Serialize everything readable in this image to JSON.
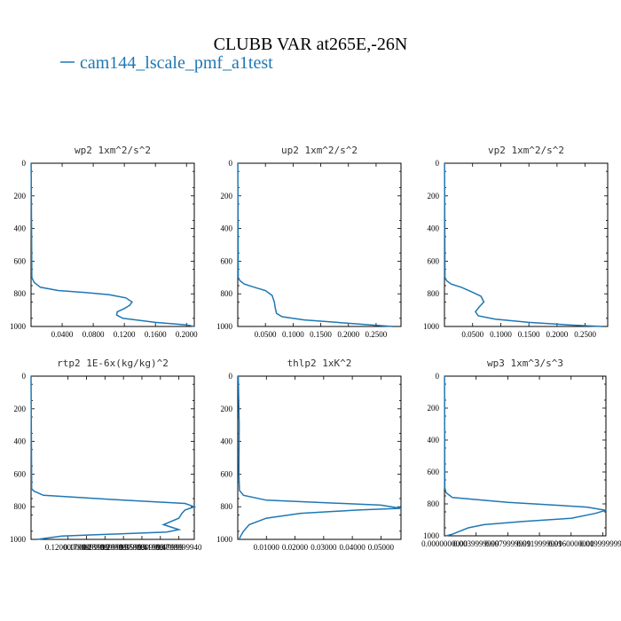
{
  "figure": {
    "title": "CLUBB VAR at265E,-26N",
    "legend_label": "cam144_lscale_pmf_a1test",
    "series_color": "#1f77b4"
  },
  "chart_data": [
    {
      "type": "line",
      "title": "wp2  1xm^2/s^2",
      "xlim": [
        0,
        0.21
      ],
      "ylim": [
        1000,
        0
      ],
      "xticks": [
        "0.0400",
        "0.0800",
        "0.1200",
        "0.1600",
        "0.2000"
      ],
      "xtick_values": [
        0.04,
        0.08,
        0.12,
        0.16,
        0.2
      ],
      "yticks": [
        "0",
        "200",
        "400",
        "600",
        "800",
        "1000"
      ],
      "ytick_values": [
        0,
        200,
        400,
        600,
        800,
        1000
      ],
      "x": [
        0.0001,
        0.001,
        0.004,
        0.012,
        0.035,
        0.07,
        0.1,
        0.122,
        0.13,
        0.127,
        0.12,
        0.111,
        0.11,
        0.118,
        0.16,
        0.2,
        0.21
      ],
      "y": [
        0,
        700,
        730,
        760,
        780,
        792,
        805,
        825,
        850,
        870,
        890,
        910,
        930,
        950,
        975,
        990,
        1000
      ]
    },
    {
      "type": "line",
      "title": "up2  1xm^2/s^2",
      "xlim": [
        0,
        0.295
      ],
      "ylim": [
        1000,
        0
      ],
      "xticks": [
        "0.0500",
        "0.1000",
        "0.1500",
        "0.2000",
        "0.2500"
      ],
      "xtick_values": [
        0.05,
        0.1,
        0.15,
        0.2,
        0.25
      ],
      "yticks": [
        "0",
        "200",
        "400",
        "600",
        "800",
        "1000"
      ],
      "ytick_values": [
        0,
        200,
        400,
        600,
        800,
        1000
      ],
      "x": [
        0.0001,
        0.001,
        0.004,
        0.012,
        0.03,
        0.05,
        0.062,
        0.066,
        0.068,
        0.07,
        0.08,
        0.12,
        0.18,
        0.24,
        0.28
      ],
      "y": [
        0,
        700,
        720,
        740,
        760,
        780,
        810,
        850,
        890,
        920,
        940,
        960,
        975,
        990,
        1000
      ]
    },
    {
      "type": "line",
      "title": "vp2  1xm^2/s^2",
      "xlim": [
        0,
        0.29
      ],
      "ylim": [
        1000,
        0
      ],
      "xticks": [
        "0.0500",
        "0.1000",
        "0.1500",
        "0.2000",
        "0.2500"
      ],
      "xtick_values": [
        0.05,
        0.1,
        0.15,
        0.2,
        0.25
      ],
      "yticks": [
        "0",
        "200",
        "400",
        "600",
        "800",
        "1000"
      ],
      "ytick_values": [
        0,
        200,
        400,
        600,
        800,
        1000
      ],
      "x": [
        0.0001,
        0.001,
        0.004,
        0.012,
        0.03,
        0.05,
        0.065,
        0.07,
        0.062,
        0.055,
        0.06,
        0.09,
        0.15,
        0.22,
        0.28
      ],
      "y": [
        0,
        700,
        720,
        740,
        760,
        790,
        815,
        850,
        880,
        910,
        935,
        955,
        975,
        990,
        1000
      ]
    },
    {
      "type": "line",
      "title": "rtp2  1E-6x(kg/kg)^2",
      "xlim": [
        0,
        0.53
      ],
      "ylim": [
        1000,
        0
      ],
      "xticks": [
        "0.1200000000",
        "0.1799999999",
        "0.2399999999",
        "0.2999999999",
        "0.3599999999",
        "0.4199999999",
        "0.4799999940"
      ],
      "xtick_values": [
        0.12,
        0.18,
        0.24,
        0.3,
        0.36,
        0.42,
        0.48
      ],
      "yticks": [
        "0",
        "200",
        "400",
        "600",
        "800",
        "1000"
      ],
      "ytick_values": [
        0,
        200,
        400,
        600,
        800,
        1000
      ],
      "x": [
        0.0001,
        0.002,
        0.01,
        0.04,
        0.3,
        0.5,
        0.53,
        0.5,
        0.49,
        0.48,
        0.43,
        0.48,
        0.44,
        0.3,
        0.1,
        0.02
      ],
      "y": [
        0,
        690,
        705,
        730,
        760,
        780,
        800,
        820,
        840,
        870,
        910,
        940,
        955,
        965,
        980,
        1000
      ]
    },
    {
      "type": "line",
      "title": "thlp2  1xK^2",
      "xlim": [
        0,
        0.057
      ],
      "ylim": [
        1000,
        0
      ],
      "xticks": [
        "0.01000",
        "0.02000",
        "0.03000",
        "0.04000",
        "0.05000"
      ],
      "xtick_values": [
        0.01,
        0.02,
        0.03,
        0.04,
        0.05
      ],
      "yticks": [
        "0",
        "200",
        "400",
        "600",
        "800",
        "1000"
      ],
      "ytick_values": [
        0,
        200,
        400,
        600,
        800,
        1000
      ],
      "x": [
        0.0002,
        0.0005,
        0.0004,
        0.0006,
        0.002,
        0.01,
        0.05,
        0.057,
        0.042,
        0.022,
        0.01,
        0.004,
        0.002,
        0.001,
        0.0005
      ],
      "y": [
        0,
        300,
        600,
        700,
        730,
        760,
        790,
        810,
        820,
        840,
        870,
        910,
        950,
        980,
        1000
      ]
    },
    {
      "type": "line",
      "title": "wp3  1xm^3/s^3",
      "xlim": [
        0,
        0.0204
      ],
      "ylim": [
        1000,
        0
      ],
      "xticks": [
        "0.0000000000",
        "0.0039999999",
        "0.0079999999",
        "0.0119999999",
        "0.0160000000",
        "0.0199999999"
      ],
      "xtick_values": [
        0,
        0.004,
        0.008,
        0.012,
        0.016,
        0.02
      ],
      "yticks": [
        "0",
        "200",
        "400",
        "600",
        "800",
        "1000"
      ],
      "ytick_values": [
        0,
        200,
        400,
        600,
        800,
        1000
      ],
      "x": [
        1e-05,
        5e-05,
        0.0002,
        0.001,
        0.008,
        0.018,
        0.0204,
        0.019,
        0.016,
        0.01,
        0.005,
        0.003,
        0.002,
        0.001,
        0.0002
      ],
      "y": [
        0,
        700,
        730,
        760,
        790,
        820,
        840,
        860,
        890,
        910,
        930,
        950,
        970,
        990,
        1000
      ]
    }
  ]
}
